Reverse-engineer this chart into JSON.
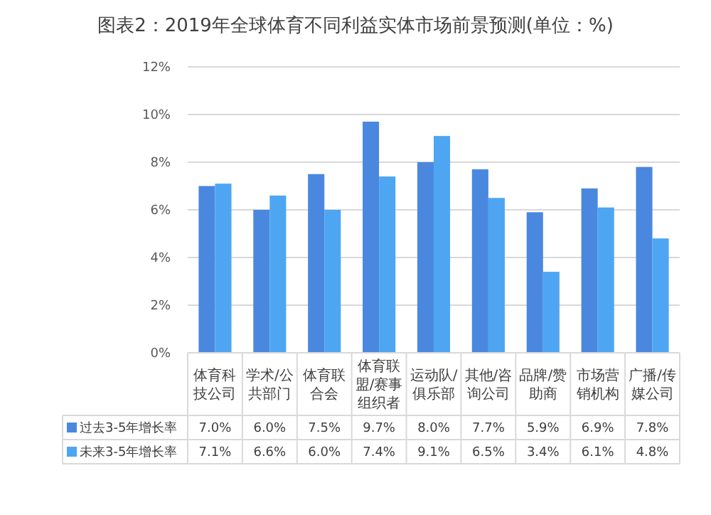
{
  "chart_data": {
    "type": "bar",
    "title": "图表2：2019年全球体育不同利益实体市场前景预测(单位：%)",
    "categories": [
      "体育科技公司",
      "学术/公共部门",
      "体育联合会",
      "体育联盟/赛事组织者",
      "运动队/俱乐部",
      "其他/咨询公司",
      "品牌/赞助商",
      "市场营销机构",
      "广播/传媒公司"
    ],
    "series": [
      {
        "name": "过去3-5年增长率",
        "color": "#4a88e0",
        "values": [
          7.0,
          6.0,
          7.5,
          9.7,
          8.0,
          7.7,
          5.9,
          6.9,
          7.8
        ],
        "value_labels": [
          "7.0%",
          "6.0%",
          "7.5%",
          "9.7%",
          "8.0%",
          "7.7%",
          "5.9%",
          "6.9%",
          "7.8%"
        ]
      },
      {
        "name": "未来3-5年增长率",
        "color": "#4ea6f2",
        "values": [
          7.1,
          6.6,
          6.0,
          7.4,
          9.1,
          6.5,
          3.4,
          6.1,
          4.8
        ],
        "value_labels": [
          "7.1%",
          "6.6%",
          "6.0%",
          "7.4%",
          "9.1%",
          "6.5%",
          "3.4%",
          "6.1%",
          "4.8%"
        ]
      }
    ],
    "ylim": [
      0,
      12
    ],
    "yticks": [
      {
        "value": 0,
        "label": "0%"
      },
      {
        "value": 2,
        "label": "2%"
      },
      {
        "value": 4,
        "label": "4%"
      },
      {
        "value": 6,
        "label": "6%"
      },
      {
        "value": 8,
        "label": "8%"
      },
      {
        "value": 10,
        "label": "10%"
      },
      {
        "value": 12,
        "label": "12%"
      }
    ],
    "grid": "y",
    "legend": "bottom"
  }
}
